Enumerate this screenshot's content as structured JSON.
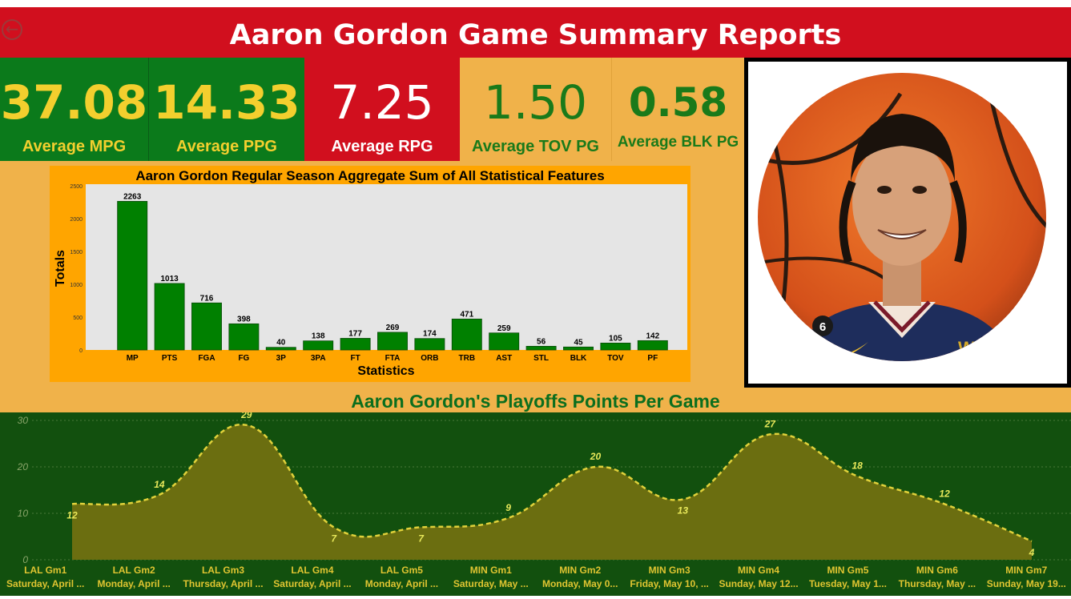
{
  "header": {
    "title": "Aaron Gordon Game Summary Reports",
    "back_icon": "arrow-left-icon"
  },
  "kpis": {
    "mpg": {
      "value": "37.08",
      "label": "Average MPG"
    },
    "ppg": {
      "value": "14.33",
      "label": "Average PPG"
    },
    "rpg": {
      "value": "7.25",
      "label": "Average RPG"
    },
    "tov": {
      "value": "1.50",
      "label": "Average TOV PG"
    },
    "blk": {
      "value": "0.58",
      "label": "Average  BLK PG"
    }
  },
  "colors": {
    "green": "#0b7a1b",
    "red": "#d10f1e",
    "orange": "#f0b24a",
    "bar_green": "#008000",
    "dark_green": "#12500e",
    "area_fill": "#6b6e10",
    "area_line": "#e0d13a",
    "label_yellow": "#e8e85a"
  },
  "photo": {
    "alt": "Aaron Gordon player headshot over a basketball",
    "jersey_number": "6"
  },
  "chart_data": [
    {
      "type": "bar",
      "title": "Aaron Gordon Regular Season Aggregate Sum of All Statistical Features",
      "xlabel": "Statistics",
      "ylabel": "Totals",
      "ylim": [
        0,
        2500
      ],
      "yticks": [
        0,
        500,
        1000,
        1500,
        2000,
        2500
      ],
      "categories": [
        "MP",
        "PTS",
        "FGA",
        "FG",
        "3P",
        "3PA",
        "FT",
        "FTA",
        "ORB",
        "TRB",
        "AST",
        "STL",
        "BLK",
        "TOV",
        "PF"
      ],
      "values": [
        2263,
        1013,
        716,
        398,
        40,
        138,
        177,
        269,
        174,
        471,
        259,
        56,
        45,
        105,
        142
      ],
      "grid": false,
      "legend": "none"
    },
    {
      "type": "area",
      "title": "Aaron Gordon's Playoffs Points Per Game",
      "ylim": [
        0,
        30
      ],
      "yticks": [
        0,
        10,
        20,
        30
      ],
      "categories": [
        "LAL Gm1",
        "LAL Gm2",
        "LAL Gm3",
        "LAL Gm4",
        "LAL Gm5",
        "MIN Gm1",
        "MIN Gm2",
        "MIN Gm3",
        "MIN Gm4",
        "MIN Gm5",
        "MIN Gm6",
        "MIN Gm7"
      ],
      "subcategories": [
        "Saturday, April ...",
        "Monday, April ...",
        "Thursday, April ...",
        "Saturday, April ...",
        "Monday, April ...",
        "Saturday, May ...",
        "Monday, May 0...",
        "Friday, May 10, ...",
        "Sunday, May 12...",
        "Tuesday, May 1...",
        "Thursday, May ...",
        "Sunday, May 19..."
      ],
      "values": [
        12,
        14,
        29,
        7,
        7,
        9,
        20,
        13,
        27,
        18,
        12,
        4
      ],
      "grid": true,
      "legend": "none"
    }
  ]
}
